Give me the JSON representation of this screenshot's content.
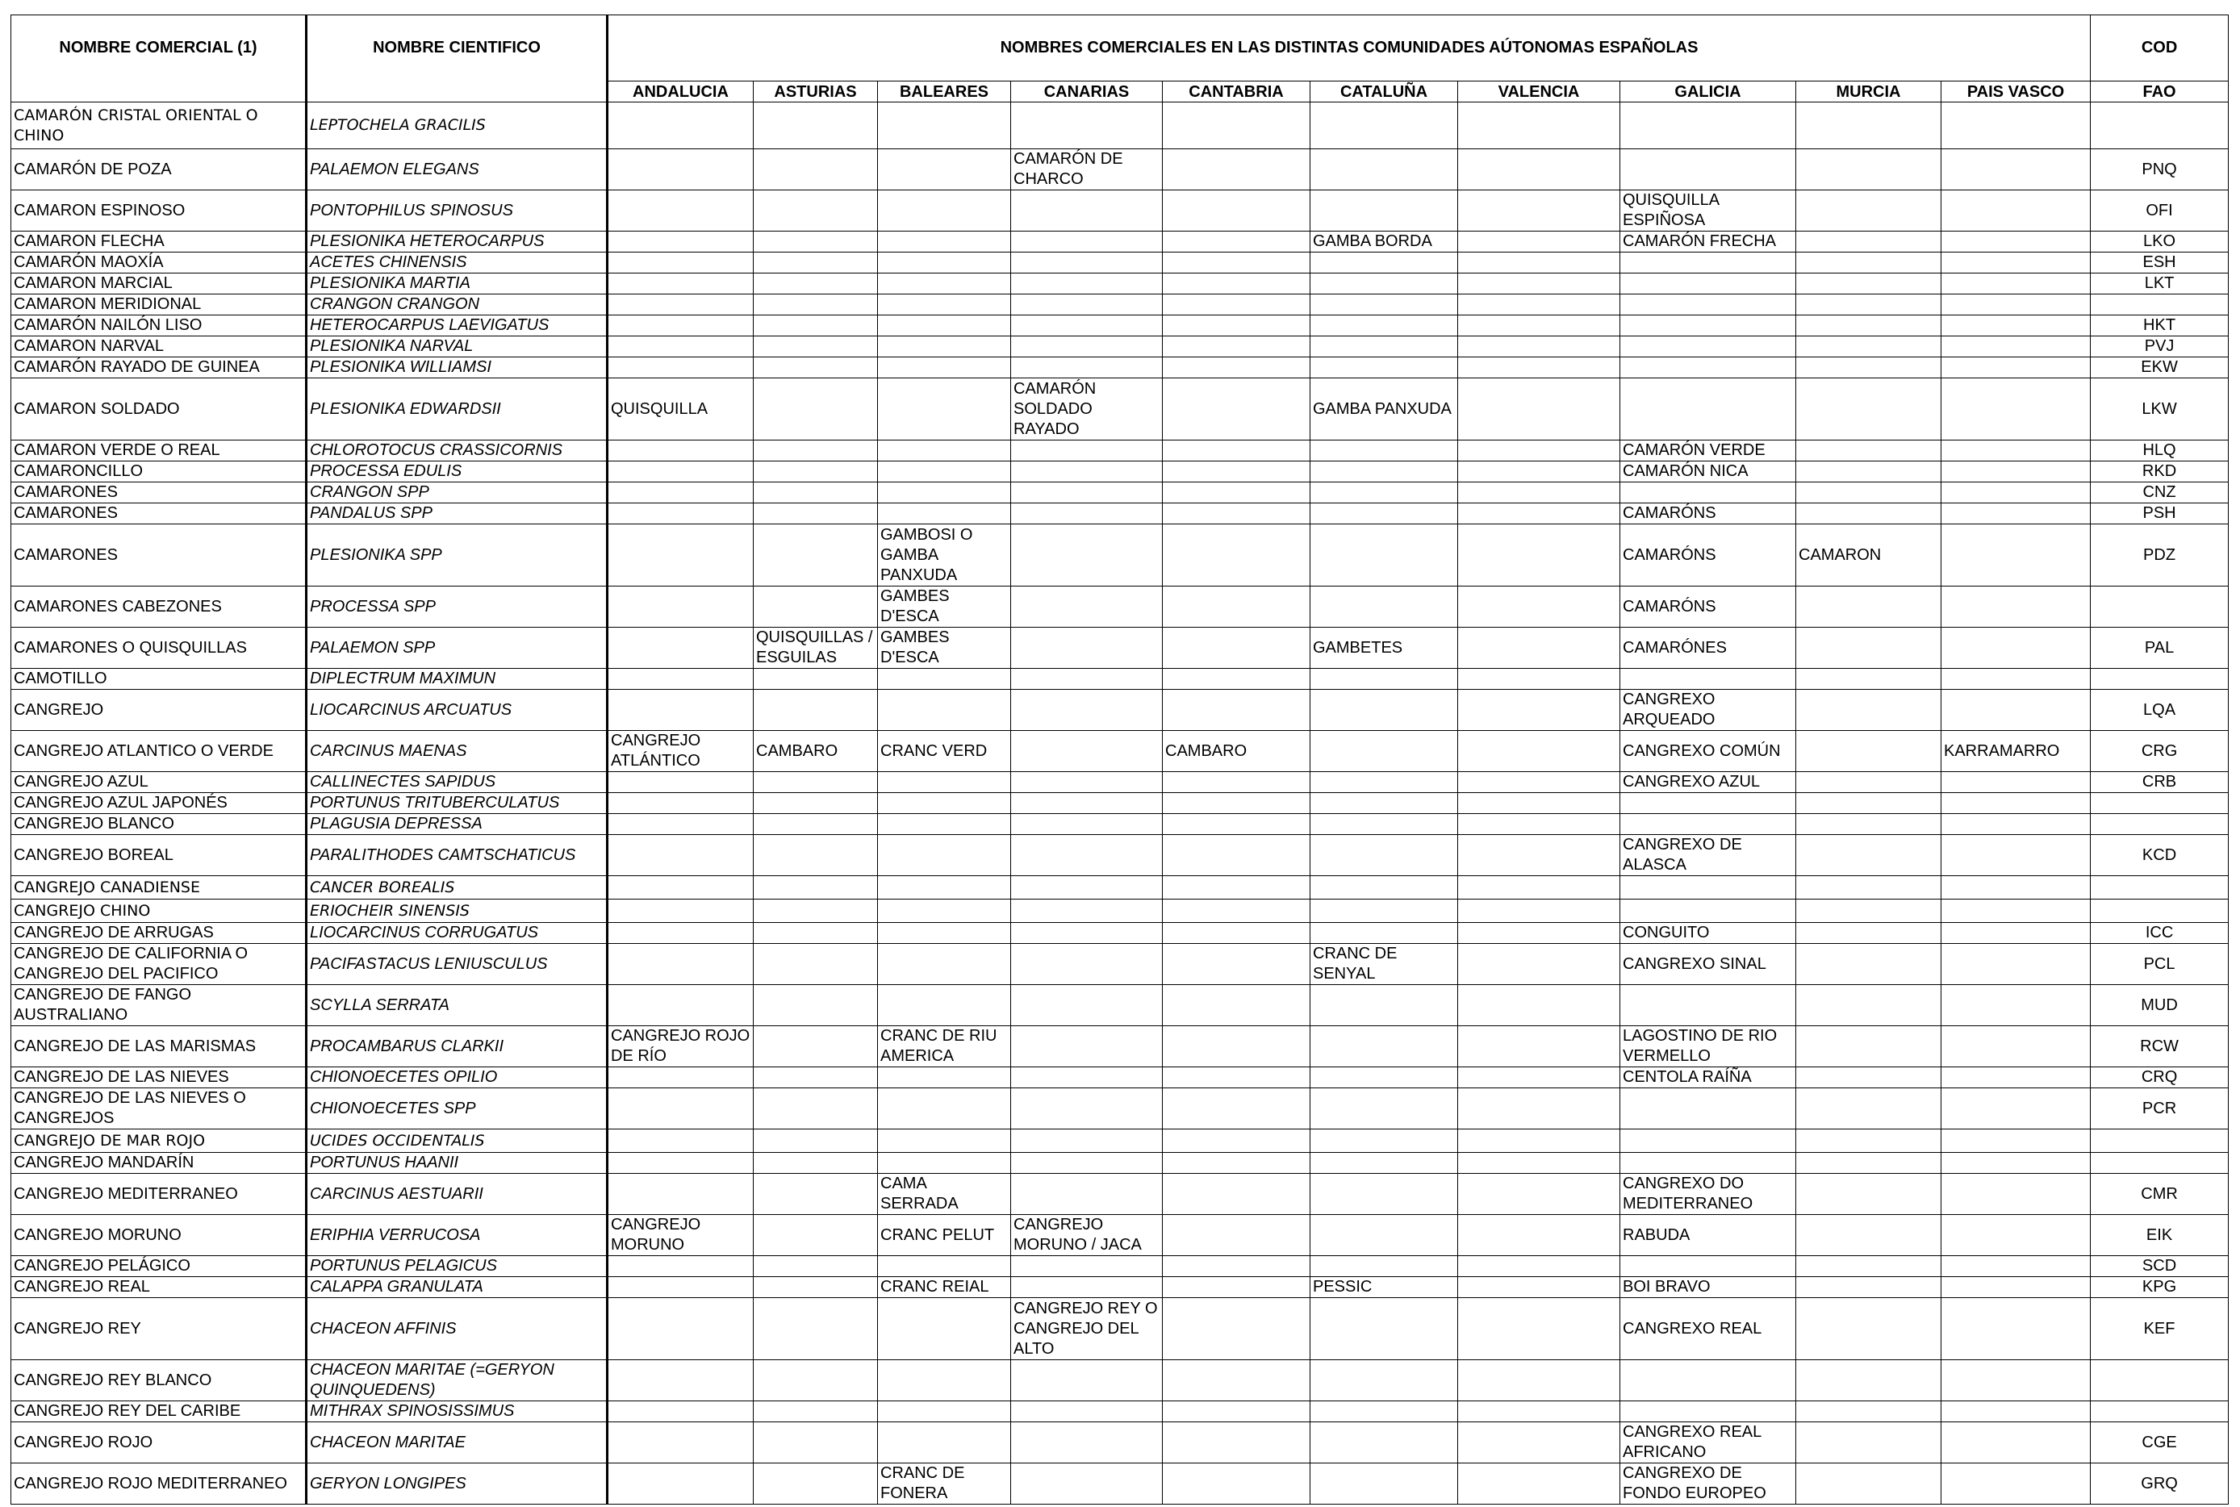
{
  "headers": {
    "nombre_comercial": "NOMBRE COMERCIAL (1)",
    "nombre_cientifico": "NOMBRE CIENTIFICO",
    "nombres_comunidades": "NOMBRES COMERCIALES EN LAS DISTINTAS COMUNIDADES AÚTONOMAS ESPAÑOLAS",
    "cod": "COD",
    "fao": "FAO",
    "regions": [
      "ANDALUCIA",
      "ASTURIAS",
      "BALEARES",
      "CANARIAS",
      "CANTABRIA",
      "CATALUÑA",
      "VALENCIA",
      "GALICIA",
      "MURCIA",
      "PAIS VASCO"
    ]
  },
  "rows": [
    {
      "h": 58,
      "f": 1,
      "c": [
        "CAMARÓN CRISTAL ORIENTAL O CHINO",
        "LEPTOCHELA GRACILIS",
        "",
        "",
        "",
        "",
        "",
        "",
        "",
        "",
        "",
        "",
        ""
      ]
    },
    {
      "h": 51,
      "c": [
        "CAMARÓN DE POZA",
        "PALAEMON ELEGANS",
        "",
        "",
        "",
        "CAMARÓN DE CHARCO",
        "",
        "",
        "",
        "",
        "",
        "",
        "PNQ"
      ]
    },
    {
      "h": 51,
      "c": [
        "CAMARON ESPINOSO",
        "PONTOPHILUS  SPINOSUS",
        "",
        "",
        "",
        "",
        "",
        "",
        "",
        "QUISQUILLA ESPIÑOSA",
        "",
        "",
        "OFI"
      ]
    },
    {
      "h": 26,
      "c": [
        "CAMARON FLECHA",
        "PLESIONIKA HETEROCARPUS",
        "",
        "",
        "",
        "",
        "",
        "GAMBA BORDA",
        "",
        "CAMARÓN FRECHA",
        "",
        "",
        "LKO"
      ]
    },
    {
      "h": 26,
      "c": [
        "CAMARÓN MAOXÍA",
        "ACETES CHINENSIS",
        "",
        "",
        "",
        "",
        "",
        "",
        "",
        "",
        "",
        "",
        "ESH"
      ]
    },
    {
      "h": 26,
      "c": [
        "CAMARON MARCIAL",
        "PLESIONIKA MARTIA",
        "",
        "",
        "",
        "",
        "",
        "",
        "",
        "",
        "",
        "",
        "LKT"
      ]
    },
    {
      "h": 26,
      "c": [
        "CAMARON MERIDIONAL",
        "CRANGON CRANGON",
        "",
        "",
        "",
        "",
        "",
        "",
        "",
        "",
        "",
        "",
        ""
      ]
    },
    {
      "h": 26,
      "c": [
        "CAMARÓN NAILÓN LISO",
        "HETEROCARPUS LAEVIGATUS",
        "",
        "",
        "",
        "",
        "",
        "",
        "",
        "",
        "",
        "",
        "HKT"
      ]
    },
    {
      "h": 26,
      "c": [
        "CAMARON NARVAL",
        "PLESIONIKA NARVAL",
        "",
        "",
        "",
        "",
        "",
        "",
        "",
        "",
        "",
        "",
        "PVJ"
      ]
    },
    {
      "h": 26,
      "c": [
        "CAMARÓN RAYADO DE GUINEA",
        "PLESIONIKA WILLIAMSI",
        "",
        "",
        "",
        "",
        "",
        "",
        "",
        "",
        "",
        "",
        "EKW"
      ]
    },
    {
      "h": 77,
      "c": [
        "CAMARON SOLDADO",
        "PLESIONIKA EDWARDSII",
        "QUISQUILLA",
        "",
        "",
        "CAMARÓN SOLDADO RAYADO",
        "",
        "GAMBA PANXUDA",
        "",
        "",
        "",
        "",
        "LKW"
      ]
    },
    {
      "h": 26,
      "c": [
        "CAMARON VERDE O REAL",
        "CHLOROTOCUS CRASSICORNIS",
        "",
        "",
        "",
        "",
        "",
        "",
        "",
        "CAMARÓN VERDE",
        "",
        "",
        "HLQ"
      ]
    },
    {
      "h": 26,
      "c": [
        "CAMARONCILLO",
        "PROCESSA EDULIS",
        "",
        "",
        "",
        "",
        "",
        "",
        "",
        "CAMARÓN NICA",
        "",
        "",
        "RKD"
      ]
    },
    {
      "h": 26,
      "c": [
        "CAMARONES",
        "CRANGON SPP",
        "",
        "",
        "",
        "",
        "",
        "",
        "",
        "",
        "",
        "",
        "CNZ"
      ]
    },
    {
      "h": 26,
      "c": [
        "CAMARONES",
        "PANDALUS SPP",
        "",
        "",
        "",
        "",
        "",
        "",
        "",
        "CAMARÓNS",
        "",
        "",
        "PSH"
      ]
    },
    {
      "h": 77,
      "c": [
        "CAMARONES",
        "PLESIONIKA SPP",
        "",
        "",
        "GAMBOSI O GAMBA PANXUDA",
        "",
        "",
        "",
        "",
        "CAMARÓNS",
        "CAMARON",
        "",
        "PDZ"
      ]
    },
    {
      "h": 51,
      "c": [
        "CAMARONES CABEZONES",
        "PROCESSA SPP",
        "",
        "",
        "GAMBES D'ESCA",
        "",
        "",
        "",
        "",
        "CAMARÓNS",
        "",
        "",
        ""
      ]
    },
    {
      "h": 51,
      "c": [
        "CAMARONES O QUISQUILLAS",
        "PALAEMON SPP",
        "",
        "QUISQUILLAS / ESGUILAS",
        "GAMBES D'ESCA",
        "",
        "",
        "GAMBETES",
        "",
        "CAMARÓNES",
        "",
        "",
        "PAL"
      ]
    },
    {
      "h": 26,
      "c": [
        "CAMOTILLO",
        "DIPLECTRUM MAXIMUN",
        "",
        "",
        "",
        "",
        "",
        "",
        "",
        "",
        "",
        "",
        ""
      ]
    },
    {
      "h": 51,
      "c": [
        "CANGREJO",
        "LIOCARCINUS ARCUATUS",
        "",
        "",
        "",
        "",
        "",
        "",
        "",
        "CANGREXO ARQUEADO",
        "",
        "",
        "LQA"
      ]
    },
    {
      "h": 51,
      "c": [
        "CANGREJO ATLANTICO O VERDE",
        "CARCINUS MAENAS",
        "CANGREJO ATLÁNTICO",
        "CAMBARO",
        "CRANC VERD",
        "",
        "CAMBARO",
        "",
        "",
        "CANGREXO COMÚN",
        "",
        "KARRAMARRO",
        "CRG"
      ]
    },
    {
      "h": 26,
      "c": [
        "CANGREJO AZUL",
        "CALLINECTES SAPIDUS",
        "",
        "",
        "",
        "",
        "",
        "",
        "",
        "CANGREXO AZUL",
        "",
        "",
        "CRB"
      ]
    },
    {
      "h": 26,
      "c": [
        "CANGREJO AZUL JAPONÉS",
        "PORTUNUS TRITUBERCULATUS",
        "",
        "",
        "",
        "",
        "",
        "",
        "",
        "",
        "",
        "",
        ""
      ]
    },
    {
      "h": 26,
      "c": [
        "CANGREJO BLANCO",
        "PLAGUSIA DEPRESSA",
        "",
        "",
        "",
        "",
        "",
        "",
        "",
        "",
        "",
        "",
        ""
      ]
    },
    {
      "h": 51,
      "c": [
        "CANGREJO BOREAL",
        "PARALITHODES CAMTSCHATICUS",
        "",
        "",
        "",
        "",
        "",
        "",
        "",
        "CANGREXO DE ALASCA",
        "",
        "",
        "KCD"
      ]
    },
    {
      "h": 29,
      "f": 1,
      "c": [
        "CANGREJO CANADIENSE",
        "CANCER BOREALIS",
        "",
        "",
        "",
        "",
        "",
        "",
        "",
        "",
        "",
        "",
        ""
      ]
    },
    {
      "h": 29,
      "f": 1,
      "c": [
        "CANGREJO CHINO",
        "ERIOCHEIR SINENSIS",
        "",
        "",
        "",
        "",
        "",
        "",
        "",
        "",
        "",
        "",
        ""
      ]
    },
    {
      "h": 26,
      "c": [
        "CANGREJO DE ARRUGAS",
        "LIOCARCINUS CORRUGATUS",
        "",
        "",
        "",
        "",
        "",
        "",
        "",
        "CONGUITO",
        "",
        "",
        "ICC"
      ]
    },
    {
      "h": 51,
      "c": [
        "CANGREJO DE CALIFORNIA O CANGREJO DEL PACIFICO",
        "PACIFASTACUS LENIUSCULUS",
        "",
        "",
        "",
        "",
        "",
        "CRANC DE SENYAL",
        "",
        "CANGREXO SINAL",
        "",
        "",
        "PCL"
      ]
    },
    {
      "h": 51,
      "c": [
        "CANGREJO DE FANGO AUSTRALIANO",
        "SCYLLA SERRATA",
        "",
        "",
        "",
        "",
        "",
        "",
        "",
        "",
        "",
        "",
        "MUD"
      ]
    },
    {
      "h": 51,
      "c": [
        "CANGREJO DE LAS MARISMAS",
        "PROCAMBARUS CLARKII",
        "CANGREJO ROJO DE RÍO",
        "",
        "CRANC DE RIU AMERICA",
        "",
        "",
        "",
        "",
        "LAGOSTINO DE RIO VERMELLO",
        "",
        "",
        "RCW"
      ]
    },
    {
      "h": 26,
      "c": [
        "CANGREJO DE LAS NIEVES",
        "CHIONOECETES OPILIO",
        "",
        "",
        "",
        "",
        "",
        "",
        "",
        "CENTOLA RAÍÑA",
        "",
        "",
        "CRQ"
      ]
    },
    {
      "h": 51,
      "c": [
        "CANGREJO DE LAS NIEVES O CANGREJOS",
        "CHIONOECETES SPP",
        "",
        "",
        "",
        "",
        "",
        "",
        "",
        "",
        "",
        "",
        "PCR"
      ]
    },
    {
      "h": 29,
      "f": 1,
      "c": [
        "CANGREJO DE MAR ROJO",
        "UCIDES OCCIDENTALIS",
        "",
        "",
        "",
        "",
        "",
        "",
        "",
        "",
        "",
        "",
        ""
      ]
    },
    {
      "h": 26,
      "c": [
        "CANGREJO MANDARÍN",
        "PORTUNUS HAANII",
        "",
        "",
        "",
        "",
        "",
        "",
        "",
        "",
        "",
        "",
        ""
      ]
    },
    {
      "h": 51,
      "c": [
        "CANGREJO MEDITERRANEO",
        "CARCINUS AESTUARII",
        "",
        "",
        "CAMA SERRADA",
        "",
        "",
        "",
        "",
        "CANGREXO DO MEDITERRANEO",
        "",
        "",
        "CMR"
      ]
    },
    {
      "h": 51,
      "c": [
        "CANGREJO MORUNO",
        "ERIPHIA VERRUCOSA",
        "CANGREJO MORUNO",
        "",
        "CRANC PELUT",
        "CANGREJO MORUNO / JACA",
        "",
        "",
        "",
        "RABUDA",
        "",
        "",
        "EIK"
      ]
    },
    {
      "h": 26,
      "c": [
        "CANGREJO PELÁGICO",
        "PORTUNUS PELAGICUS",
        "",
        "",
        "",
        "",
        "",
        "",
        "",
        "",
        "",
        "",
        "SCD"
      ]
    },
    {
      "h": 26,
      "c": [
        "CANGREJO REAL",
        "CALAPPA GRANULATA",
        "",
        "",
        "CRANC REIAL",
        "",
        "",
        "PESSIC",
        "",
        "BOI BRAVO",
        "",
        "",
        "KPG"
      ]
    },
    {
      "h": 77,
      "c": [
        "CANGREJO REY",
        "CHACEON AFFINIS",
        "",
        "",
        "",
        "CANGREJO REY O CANGREJO DEL ALTO",
        "",
        "",
        "",
        "CANGREXO REAL",
        "",
        "",
        "KEF"
      ]
    },
    {
      "h": 51,
      "c": [
        "CANGREJO REY BLANCO",
        "CHACEON MARITAE (=GERYON QUINQUEDENS)",
        "",
        "",
        "",
        "",
        "",
        "",
        "",
        "",
        "",
        "",
        ""
      ]
    },
    {
      "h": 26,
      "c": [
        "CANGREJO REY DEL CARIBE",
        "MITHRAX SPINOSISSIMUS",
        "",
        "",
        "",
        "",
        "",
        "",
        "",
        "",
        "",
        "",
        ""
      ]
    },
    {
      "h": 51,
      "c": [
        "CANGREJO ROJO",
        "CHACEON MARITAE",
        "",
        "",
        "",
        "",
        "",
        "",
        "",
        "CANGREXO REAL AFRICANO",
        "",
        "",
        "CGE"
      ]
    },
    {
      "h": 51,
      "c": [
        "CANGREJO ROJO MEDITERRANEO",
        "GERYON LONGIPES",
        "",
        "",
        "CRANC DE FONERA",
        "",
        "",
        "",
        "",
        "CANGREXO DE FONDO EUROPEO",
        "",
        "",
        "GRQ"
      ]
    }
  ]
}
